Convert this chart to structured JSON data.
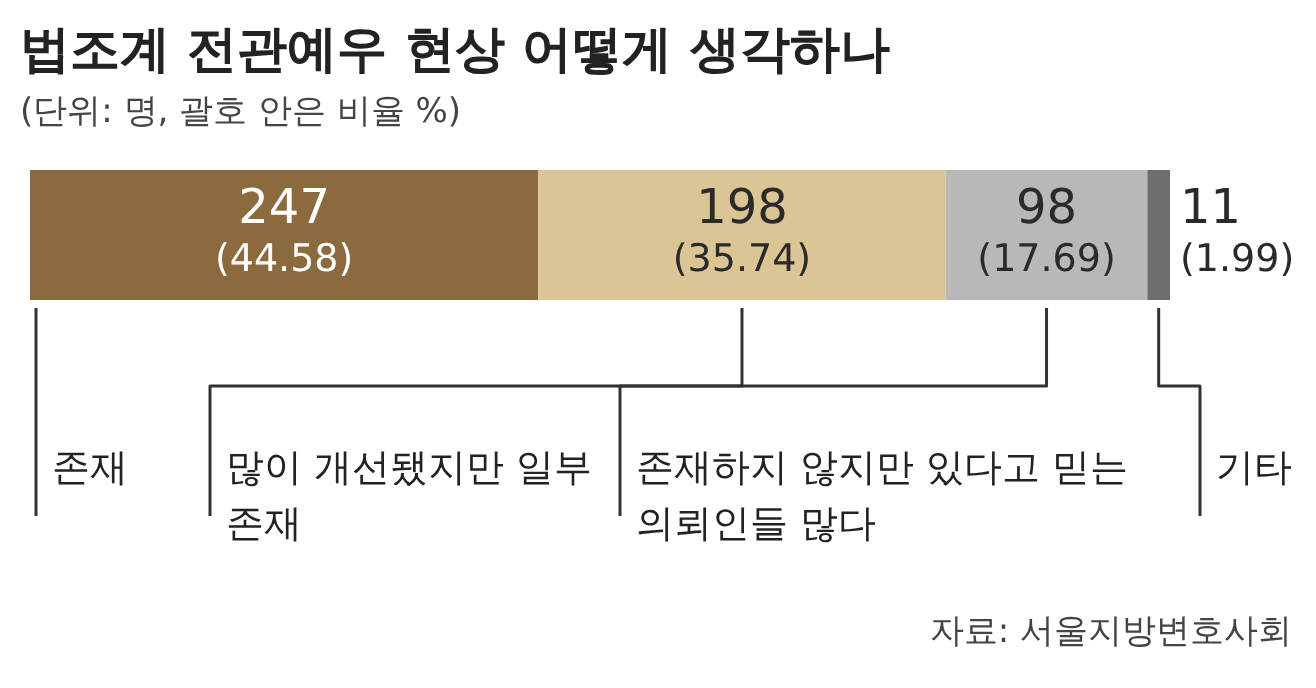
{
  "chart_data": {
    "type": "bar",
    "orientation": "horizontal",
    "stacked": true,
    "title": "법조계 전관예우 현상 어떻게 생각하나",
    "subtitle": "(단위: 명, 괄호 안은 비율 %)",
    "categories": [
      null
    ],
    "xlim": [
      0,
      554
    ],
    "tick_labels": false,
    "legend": "bottom",
    "series": [
      {
        "name": "존재",
        "color": "#8b6b3d",
        "values": [
          247
        ],
        "value_labels": [
          "247\n(44.58)"
        ]
      },
      {
        "name": "많이 개선됐지만 일부 존재",
        "color": "#dcc594",
        "values": [
          198
        ],
        "value_labels": [
          "198\n(35.74)"
        ]
      },
      {
        "name": "존재하지 않지만 있다고 믿는 의뢰인들 많다",
        "color": "#b8b8b8",
        "values": [
          98
        ],
        "value_labels": [
          "98\n(17.69)"
        ]
      },
      {
        "name": "기타",
        "color": "#6e6e6e",
        "values": [
          11
        ],
        "value_labels": [
          "11\n(1.99)"
        ]
      }
    ],
    "annotations": [
      "자료: 서울지방변호사회"
    ]
  }
}
